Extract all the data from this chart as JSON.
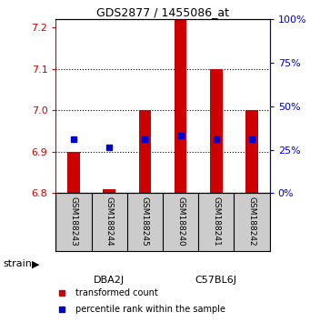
{
  "title": "GDS2877 / 1455086_at",
  "samples": [
    "GSM188243",
    "GSM188244",
    "GSM188245",
    "GSM188240",
    "GSM188241",
    "GSM188242"
  ],
  "group_colors": [
    "#ccffcc",
    "#66ee66"
  ],
  "bar_base": 6.8,
  "bar_tops": [
    6.9,
    6.81,
    7.0,
    7.22,
    7.1,
    7.0
  ],
  "blue_y": [
    6.93,
    6.91,
    6.93,
    6.94,
    6.93,
    6.93
  ],
  "ymin": 6.8,
  "ymax": 7.22,
  "yticks_left": [
    6.8,
    6.9,
    7.0,
    7.1,
    7.2
  ],
  "yticks_right_pct": [
    0,
    25,
    50,
    75,
    100
  ],
  "bar_color": "#cc0000",
  "blue_color": "#0000cc",
  "bg_color": "#ffffff",
  "sample_box_color": "#cccccc",
  "legend_red": "transformed count",
  "legend_blue": "percentile rank within the sample",
  "strain_label": "strain",
  "group_labels": [
    "DBA2J",
    "C57BL6J"
  ]
}
